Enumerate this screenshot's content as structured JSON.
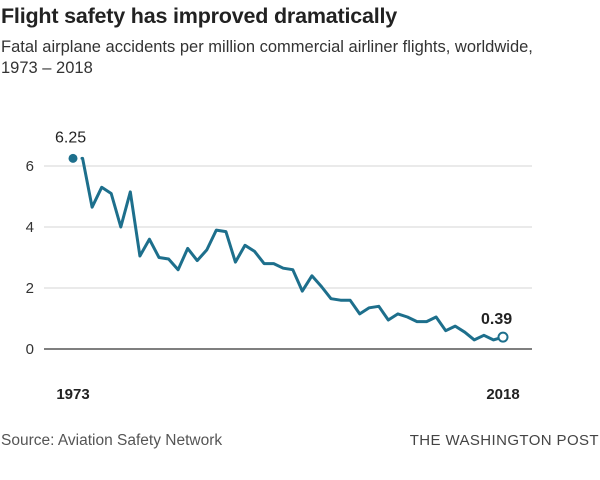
{
  "title": "Flight safety has improved dramatically",
  "subtitle": "Fatal airplane accidents per million commercial airliner flights, worldwide, 1973 – 2018",
  "source": "Source: Aviation Safety Network",
  "credit": "THE WASHINGTON POST",
  "colors": {
    "line": "#1d6f8c",
    "grid": "#d4d4d4",
    "axis": "#333333"
  },
  "chart_data": {
    "type": "line",
    "title": "Flight safety has improved dramatically",
    "xlabel": "",
    "ylabel": "Fatal airplane accidents per million commercial airliner flights",
    "xlim": [
      1973,
      2018
    ],
    "ylim": [
      0,
      6.5
    ],
    "yticks": [
      0,
      2,
      4,
      6
    ],
    "ytick_labels": [
      "0",
      "2",
      "4",
      "6"
    ],
    "xtick_labels": [
      "1973",
      "2018"
    ],
    "grid": true,
    "series": [
      {
        "name": "Fatal accidents per million flights",
        "x": [
          1973,
          1974,
          1975,
          1976,
          1977,
          1978,
          1979,
          1980,
          1981,
          1982,
          1983,
          1984,
          1985,
          1986,
          1987,
          1988,
          1989,
          1990,
          1991,
          1992,
          1993,
          1994,
          1995,
          1996,
          1997,
          1998,
          1999,
          2000,
          2001,
          2002,
          2003,
          2004,
          2005,
          2006,
          2007,
          2008,
          2009,
          2010,
          2011,
          2012,
          2013,
          2014,
          2015,
          2016,
          2017,
          2018
        ],
        "values": [
          6.25,
          6.25,
          4.65,
          5.3,
          5.1,
          4.0,
          5.15,
          3.05,
          3.6,
          3.0,
          2.95,
          2.6,
          3.3,
          2.9,
          3.25,
          3.9,
          3.85,
          2.85,
          3.4,
          3.2,
          2.8,
          2.8,
          2.65,
          2.6,
          1.9,
          2.4,
          2.05,
          1.65,
          1.6,
          1.6,
          1.15,
          1.35,
          1.4,
          0.95,
          1.15,
          1.05,
          0.9,
          0.9,
          1.05,
          0.6,
          0.75,
          0.55,
          0.3,
          0.45,
          0.3,
          0.39
        ]
      }
    ],
    "annotations": [
      {
        "label": "6.25",
        "x": 1973,
        "y": 6.25,
        "marker": "filled"
      },
      {
        "label": "0.39",
        "x": 2018,
        "y": 0.39,
        "marker": "open"
      }
    ]
  }
}
